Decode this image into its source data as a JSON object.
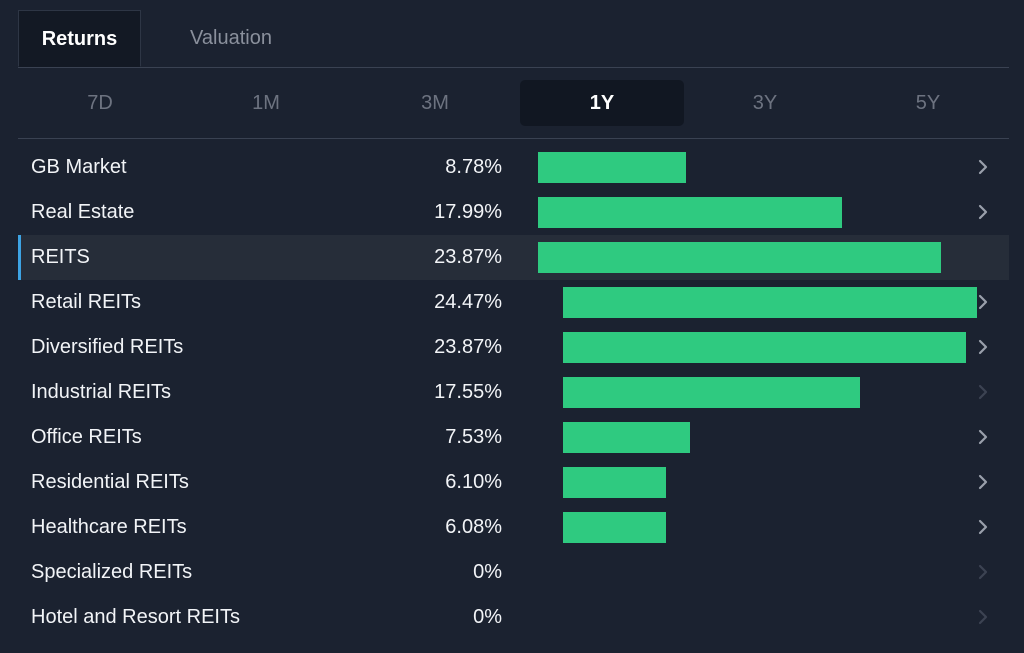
{
  "tabs": [
    {
      "label": "Returns",
      "active": true
    },
    {
      "label": "Valuation",
      "active": false
    }
  ],
  "periods": [
    "7D",
    "1M",
    "3M",
    "1Y",
    "3Y",
    "5Y"
  ],
  "active_period": "1Y",
  "colors": {
    "background": "#1b2230",
    "bar": "#2fca80",
    "highlight_accent": "#3da3e3",
    "chevron_enabled": "#9aa0ab",
    "chevron_disabled": "#3c4352"
  },
  "chart_data": {
    "type": "bar",
    "orientation": "horizontal",
    "unit": "%",
    "categories": [
      "GB Market",
      "Real Estate",
      "REITS",
      "Retail REITs",
      "Diversified REITs",
      "Industrial REITs",
      "Office REITs",
      "Residential REITs",
      "Healthcare REITs",
      "Specialized REITs",
      "Hotel and Resort REITs"
    ],
    "values": [
      8.78,
      17.99,
      23.87,
      24.47,
      23.87,
      17.55,
      7.53,
      6.1,
      6.08,
      0,
      0
    ]
  },
  "rows": [
    {
      "name": "GB Market",
      "value": "8.78%",
      "highlight": false,
      "chevron": "enabled",
      "indented": false
    },
    {
      "name": "Real Estate",
      "value": "17.99%",
      "highlight": false,
      "chevron": "enabled",
      "indented": false
    },
    {
      "name": "REITS",
      "value": "23.87%",
      "highlight": true,
      "chevron": "none",
      "indented": false
    },
    {
      "name": "Retail REITs",
      "value": "24.47%",
      "highlight": false,
      "chevron": "enabled",
      "indented": true
    },
    {
      "name": "Diversified REITs",
      "value": "23.87%",
      "highlight": false,
      "chevron": "enabled",
      "indented": true
    },
    {
      "name": "Industrial REITs",
      "value": "17.55%",
      "highlight": false,
      "chevron": "disabled",
      "indented": true
    },
    {
      "name": "Office REITs",
      "value": "7.53%",
      "highlight": false,
      "chevron": "enabled",
      "indented": true
    },
    {
      "name": "Residential REITs",
      "value": "6.10%",
      "highlight": false,
      "chevron": "enabled",
      "indented": true
    },
    {
      "name": "Healthcare REITs",
      "value": "6.08%",
      "highlight": false,
      "chevron": "enabled",
      "indented": true
    },
    {
      "name": "Specialized REITs",
      "value": "0%",
      "highlight": false,
      "chevron": "disabled",
      "indented": true
    },
    {
      "name": "Hotel and Resort REITs",
      "value": "0%",
      "highlight": false,
      "chevron": "disabled",
      "indented": true
    }
  ]
}
